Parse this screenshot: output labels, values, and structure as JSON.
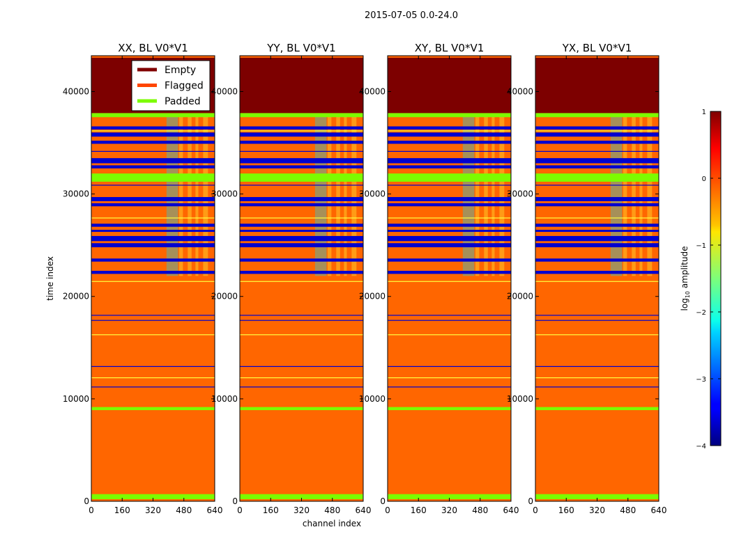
{
  "suptitle": "2015-07-05 0.0-24.0",
  "xlabel": "channel index",
  "ylabel": "time index",
  "legend": {
    "location": "upper-right of first panel",
    "entries": [
      {
        "label": "Empty",
        "color": "#800000"
      },
      {
        "label": "Flagged",
        "color": "#ff4500"
      },
      {
        "label": "Padded",
        "color": "#7cfc00"
      }
    ]
  },
  "colorbar": {
    "label_main": "log",
    "label_sub": "10",
    "label_rest": " amplitude",
    "range": [
      -4,
      1
    ],
    "ticks": [
      1,
      0,
      -1,
      -2,
      -3,
      -4
    ],
    "tick_labels": [
      "1",
      "0",
      "−1",
      "−2",
      "−3",
      "−4"
    ],
    "colormap": "jet"
  },
  "colors": {
    "background_fill": "#ff6600",
    "empty": "#7d0000",
    "low_amplitude": "#0000d0",
    "padded": "#7cfc00",
    "mid": "#00e0ff",
    "high": "#ffff40"
  },
  "chart_data": {
    "type": "heatmap",
    "xlim": [
      0,
      640
    ],
    "ylim": [
      0,
      43500
    ],
    "x_ticks": [
      0,
      160,
      320,
      480,
      640
    ],
    "x_tick_labels": [
      "0",
      "160",
      "320",
      "480",
      "640"
    ],
    "y_ticks": [
      0,
      10000,
      20000,
      30000,
      40000
    ],
    "y_tick_labels": [
      "0",
      "10000",
      "20000",
      "30000",
      "40000"
    ],
    "panels": [
      {
        "title": "XX, BL V0*V1"
      },
      {
        "title": "YY, BL V0*V1"
      },
      {
        "title": "XY, BL V0*V1"
      },
      {
        "title": "YX, BL V0*V1"
      }
    ],
    "empty_region": {
      "t0": 37900,
      "t1": 43300,
      "value": "Empty"
    },
    "padded_rows": [
      {
        "t0": 200,
        "t1": 700
      },
      {
        "t0": 8900,
        "t1": 9200
      },
      {
        "t0": 31200,
        "t1": 32000
      },
      {
        "t0": 37500,
        "t1": 37900
      }
    ],
    "low_bands": [
      {
        "t0": 22200,
        "t1": 22500
      },
      {
        "t0": 23400,
        "t1": 23700
      },
      {
        "t0": 24800,
        "t1": 25200
      },
      {
        "t0": 25400,
        "t1": 25900
      },
      {
        "t0": 26300,
        "t1": 26500
      },
      {
        "t0": 26800,
        "t1": 27100
      },
      {
        "t0": 28800,
        "t1": 29100
      },
      {
        "t0": 29300,
        "t1": 29700
      },
      {
        "t0": 32500,
        "t1": 32800
      },
      {
        "t0": 33000,
        "t1": 33500
      },
      {
        "t0": 34900,
        "t1": 35200
      },
      {
        "t0": 35600,
        "t1": 36000
      },
      {
        "t0": 36300,
        "t1": 36600
      }
    ],
    "thin_lines": [
      {
        "t": 11200,
        "kind": "low"
      },
      {
        "t": 13200,
        "kind": "low"
      },
      {
        "t": 17700,
        "kind": "low"
      },
      {
        "t": 18200,
        "kind": "low"
      },
      {
        "t": 12100,
        "kind": "high"
      },
      {
        "t": 16300,
        "kind": "high"
      },
      {
        "t": 21500,
        "kind": "high"
      },
      {
        "t": 34200,
        "kind": "low"
      },
      {
        "t": 30900,
        "kind": "low"
      },
      {
        "t": 27700,
        "kind": "high"
      },
      {
        "t": 36200,
        "kind": "high"
      }
    ],
    "channel_features": [
      {
        "c0": 390,
        "c1": 450,
        "kind": "mid"
      },
      {
        "c0": 455,
        "c1": 475,
        "kind": "high"
      },
      {
        "c0": 500,
        "c1": 520,
        "kind": "high"
      },
      {
        "c0": 540,
        "c1": 555,
        "kind": "high"
      },
      {
        "c0": 580,
        "c1": 605,
        "kind": "high"
      }
    ]
  }
}
